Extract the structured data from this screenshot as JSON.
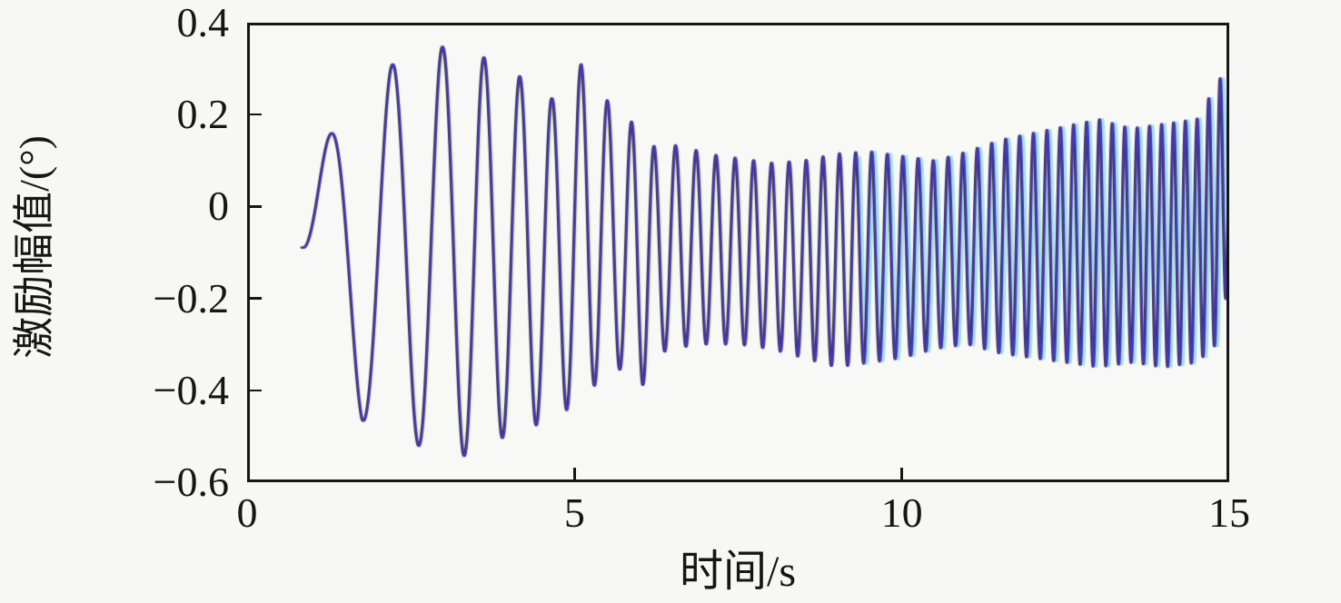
{
  "page": {
    "background": "#f7f7f5",
    "text_color": "#161616"
  },
  "chart_data": {
    "type": "line",
    "title": "",
    "xlabel": "时间/s",
    "ylabel": "激励幅值/(°)",
    "xlim": [
      0,
      15
    ],
    "ylim": [
      -0.6,
      0.4
    ],
    "grid": false,
    "legend": "none",
    "frame_color": "#161616",
    "x_ticks": [
      {
        "v": 0,
        "label": "0"
      },
      {
        "v": 5,
        "label": "5"
      },
      {
        "v": 10,
        "label": "10"
      },
      {
        "v": 15,
        "label": "15"
      }
    ],
    "y_ticks": [
      {
        "v": 0.4,
        "label": "0.4"
      },
      {
        "v": 0.2,
        "label": "0.2"
      },
      {
        "v": 0,
        "label": "0"
      },
      {
        "v": -0.2,
        "label": "−0.2"
      },
      {
        "v": -0.4,
        "label": "−0.4"
      },
      {
        "v": -0.6,
        "label": "−0.6"
      }
    ],
    "signal": {
      "t_start": 0.83,
      "t_end": 15.0,
      "dt": 0.004,
      "phase0": -1.1,
      "start_value": -0.08,
      "freq_hz_keypoints": [
        [
          0.83,
          0.95
        ],
        [
          1.5,
          1.0
        ],
        [
          2.25,
          1.18
        ],
        [
          3.0,
          1.45
        ],
        [
          3.7,
          1.75
        ],
        [
          4.3,
          2.0
        ],
        [
          5.0,
          2.3
        ],
        [
          6.0,
          2.9
        ],
        [
          7.0,
          3.3
        ],
        [
          8.0,
          3.7
        ],
        [
          9.0,
          4.0
        ],
        [
          10.0,
          4.25
        ],
        [
          11.0,
          4.5
        ],
        [
          12.0,
          4.8
        ],
        [
          13.0,
          5.1
        ],
        [
          14.0,
          5.45
        ],
        [
          15.0,
          5.8
        ]
      ],
      "upper_envelope_keypoints": [
        [
          0.83,
          0.1
        ],
        [
          1.25,
          0.155
        ],
        [
          1.8,
          0.24
        ],
        [
          2.25,
          0.315
        ],
        [
          2.6,
          0.335
        ],
        [
          3.05,
          0.35
        ],
        [
          3.4,
          0.335
        ],
        [
          3.7,
          0.32
        ],
        [
          4.2,
          0.28
        ],
        [
          4.65,
          0.235
        ],
        [
          5.1,
          0.31
        ],
        [
          5.5,
          0.23
        ],
        [
          5.9,
          0.18
        ],
        [
          6.25,
          0.125
        ],
        [
          6.6,
          0.135
        ],
        [
          7.0,
          0.115
        ],
        [
          7.5,
          0.105
        ],
        [
          8.0,
          0.095
        ],
        [
          8.5,
          0.1
        ],
        [
          9.0,
          0.115
        ],
        [
          9.5,
          0.12
        ],
        [
          10.0,
          0.11
        ],
        [
          10.5,
          0.1
        ],
        [
          11.0,
          0.12
        ],
        [
          11.5,
          0.145
        ],
        [
          12.0,
          0.16
        ],
        [
          12.5,
          0.175
        ],
        [
          13.0,
          0.19
        ],
        [
          13.5,
          0.17
        ],
        [
          14.0,
          0.18
        ],
        [
          14.5,
          0.19
        ],
        [
          14.8,
          0.265
        ],
        [
          15.0,
          0.315
        ]
      ],
      "lower_envelope_keypoints": [
        [
          0.83,
          -0.1
        ],
        [
          1.3,
          -0.28
        ],
        [
          1.75,
          -0.465
        ],
        [
          2.2,
          -0.5
        ],
        [
          2.7,
          -0.525
        ],
        [
          3.1,
          -0.535
        ],
        [
          3.37,
          -0.545
        ],
        [
          3.94,
          -0.5
        ],
        [
          4.47,
          -0.473
        ],
        [
          4.91,
          -0.44
        ],
        [
          5.33,
          -0.386
        ],
        [
          5.68,
          -0.354
        ],
        [
          6.03,
          -0.39
        ],
        [
          6.4,
          -0.31
        ],
        [
          7.0,
          -0.3
        ],
        [
          7.5,
          -0.3
        ],
        [
          8.0,
          -0.31
        ],
        [
          8.5,
          -0.33
        ],
        [
          9.0,
          -0.35
        ],
        [
          9.5,
          -0.34
        ],
        [
          10.0,
          -0.33
        ],
        [
          10.5,
          -0.31
        ],
        [
          11.0,
          -0.3
        ],
        [
          11.5,
          -0.32
        ],
        [
          12.0,
          -0.33
        ],
        [
          12.5,
          -0.34
        ],
        [
          13.0,
          -0.35
        ],
        [
          13.5,
          -0.34
        ],
        [
          14.0,
          -0.35
        ],
        [
          14.5,
          -0.34
        ],
        [
          14.8,
          -0.3
        ],
        [
          15.0,
          -0.16
        ]
      ]
    },
    "series": [
      {
        "name": "trace-pale-yellow",
        "color": "#eef0c2",
        "width": 3.2,
        "t_offset": 0.035,
        "t_from": 2.3,
        "amp_scale": 0.97
      },
      {
        "name": "trace-light-cyan",
        "color": "#a5dff0",
        "width": 3.0,
        "t_offset": 0.055,
        "t_from": 9.3,
        "amp_scale": 1.0
      },
      {
        "name": "trace-dark-gray",
        "color": "#2f2f2f",
        "width": 2.5,
        "t_offset": 0.0,
        "t_from": 0.83,
        "amp_scale": 1.0
      },
      {
        "name": "trace-indigo-blue",
        "color": "#4538b6",
        "width": 2.5,
        "t_offset": 0.013,
        "t_from": 0.83,
        "amp_scale": 1.0
      }
    ]
  }
}
